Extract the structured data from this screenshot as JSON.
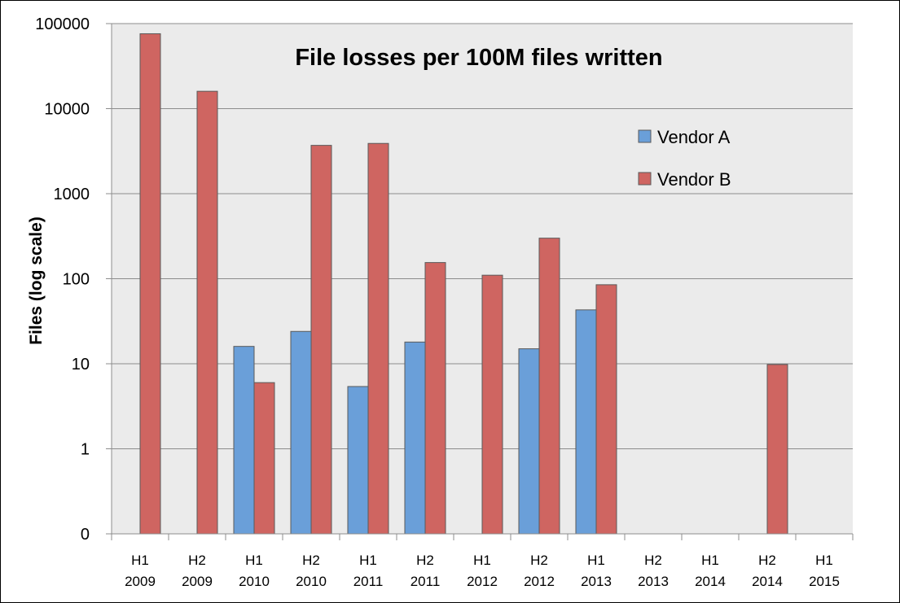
{
  "chart_data": {
    "type": "bar",
    "title": "File losses per 100M files written",
    "ylabel": "Files (log scale)",
    "xlabel": "",
    "y_scale": "log",
    "ylim": [
      0,
      100000
    ],
    "y_ticks": [
      "100000",
      "10000",
      "1000",
      "100",
      "10",
      "1",
      "0"
    ],
    "grid": true,
    "legend_position": "right",
    "categories": [
      [
        "H1",
        "2009"
      ],
      [
        "H2",
        "2009"
      ],
      [
        "H1",
        "2010"
      ],
      [
        "H2",
        "2010"
      ],
      [
        "H1",
        "2011"
      ],
      [
        "H2",
        "2011"
      ],
      [
        "H1",
        "2012"
      ],
      [
        "H2",
        "2012"
      ],
      [
        "H1",
        "2013"
      ],
      [
        "H2",
        "2013"
      ],
      [
        "H1",
        "2014"
      ],
      [
        "H2",
        "2014"
      ],
      [
        "H1",
        "2015"
      ]
    ],
    "series": [
      {
        "name": "Vendor A",
        "color": "#6a9fd9",
        "values": [
          null,
          null,
          16,
          24,
          5.4,
          18,
          null,
          15,
          43,
          null,
          null,
          null,
          null
        ]
      },
      {
        "name": "Vendor B",
        "color": "#cf6561",
        "values": [
          76000,
          16000,
          6,
          3700,
          3900,
          155,
          110,
          300,
          85,
          null,
          null,
          9.8,
          null
        ]
      }
    ]
  }
}
